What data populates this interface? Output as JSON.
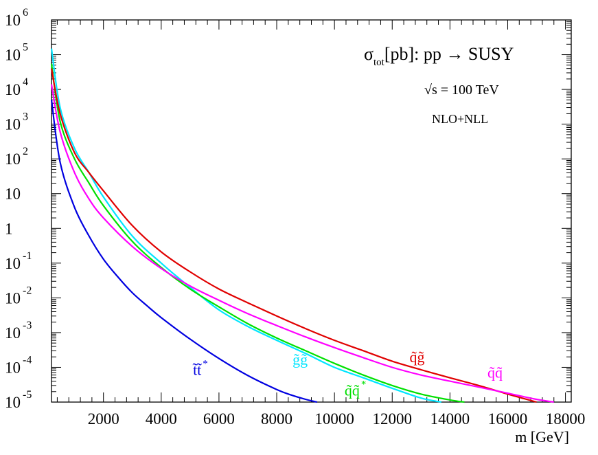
{
  "chart_data": {
    "type": "line",
    "title": {
      "sigma": "σ",
      "subscript": "tot",
      "rest": "[pb]: pp → SUSY"
    },
    "annotations": [
      {
        "id": "energy",
        "text": "√s = 100 TeV"
      },
      {
        "id": "order",
        "text": "NLO+NLL"
      }
    ],
    "xlabel": "m [GeV]",
    "ylabel": "",
    "xlim": [
      200,
      18200
    ],
    "ylim_log10": [
      -5,
      6
    ],
    "yscale": "log",
    "grid": false,
    "x_ticks": [
      2000,
      4000,
      6000,
      8000,
      10000,
      12000,
      14000,
      16000,
      18000
    ],
    "x_tick_labels": [
      "2000",
      "4000",
      "6000",
      "8000",
      "10000",
      "12000",
      "14000",
      "16000",
      "18000"
    ],
    "y_ticks": [
      {
        "value": 1000000.0,
        "base": "10",
        "exp": "6"
      },
      {
        "value": 100000.0,
        "base": "10",
        "exp": "5"
      },
      {
        "value": 10000.0,
        "base": "10",
        "exp": "4"
      },
      {
        "value": 1000.0,
        "base": "10",
        "exp": "3"
      },
      {
        "value": 100.0,
        "base": "10",
        "exp": "2"
      },
      {
        "value": 10,
        "base": "10",
        "exp": ""
      },
      {
        "value": 1,
        "base": "1",
        "exp": ""
      },
      {
        "value": 0.1,
        "base": "10",
        "exp": "-1"
      },
      {
        "value": 0.01,
        "base": "10",
        "exp": "-2"
      },
      {
        "value": 0.001,
        "base": "10",
        "exp": "-3"
      },
      {
        "value": 0.0001,
        "base": "10",
        "exp": "-4"
      },
      {
        "value": 1e-05,
        "base": "10",
        "exp": "-5"
      }
    ],
    "series": [
      {
        "name": "g̃g̃",
        "label": {
          "main": "g̃g̃",
          "sup": "",
          "x": 8550,
          "y": 0.00012
        },
        "color": "#00e5ff",
        "x": [
          200,
          500,
          1000,
          1500,
          2000,
          3000,
          4000,
          5000,
          6000,
          7000,
          8000,
          9000,
          10000,
          11000,
          12000,
          13000,
          13700
        ],
        "y": [
          150000,
          3000,
          200,
          40,
          8,
          0.6,
          0.1,
          0.02,
          0.0045,
          0.0015,
          0.0006,
          0.00025,
          0.0001,
          5e-05,
          2.5e-05,
          1.3e-05,
          1e-05
        ]
      },
      {
        "name": "q̃q̃*",
        "label": {
          "main": "q̃q̃",
          "sup": "*",
          "x": 10350,
          "y": 1.55e-05
        },
        "color": "#00e000",
        "x": [
          200,
          500,
          1000,
          1500,
          2000,
          3000,
          4000,
          5000,
          6000,
          7000,
          8000,
          9000,
          10000,
          11000,
          12000,
          13000,
          14000,
          14500
        ],
        "y": [
          55000,
          1200,
          100,
          20,
          4.5,
          0.42,
          0.075,
          0.018,
          0.0055,
          0.0018,
          0.0007,
          0.0003,
          0.00013,
          6e-05,
          3e-05,
          1.7e-05,
          1.15e-05,
          1e-05
        ]
      },
      {
        "name": "q̃g̃",
        "label": {
          "main": "q̃g̃",
          "sup": "",
          "x": 12600,
          "y": 0.00014
        },
        "color": "#e00000",
        "x": [
          200,
          500,
          1000,
          1500,
          2000,
          3000,
          4000,
          5000,
          6000,
          7000,
          8000,
          9000,
          10000,
          11000,
          12000,
          13000,
          14000,
          15000,
          16000,
          17000
        ],
        "y": [
          40000,
          2000,
          150,
          40,
          12,
          1.2,
          0.21,
          0.056,
          0.018,
          0.0072,
          0.003,
          0.0013,
          0.0006,
          0.0003,
          0.00015,
          8.5e-05,
          5e-05,
          3e-05,
          1.7e-05,
          1e-05
        ]
      },
      {
        "name": "q̃q̃",
        "label": {
          "main": "q̃q̃",
          "sup": "",
          "x": 15300,
          "y": 5e-05
        },
        "color": "#ff00ff",
        "x": [
          200,
          500,
          1000,
          1500,
          2000,
          3000,
          4000,
          5000,
          6000,
          7000,
          8000,
          9000,
          10000,
          11000,
          12000,
          13000,
          14000,
          15000,
          16000,
          17000,
          17600
        ],
        "y": [
          14000,
          600,
          40,
          7,
          2,
          0.3,
          0.07,
          0.022,
          0.0085,
          0.0035,
          0.0016,
          0.00075,
          0.00037,
          0.00019,
          0.0001,
          6e-05,
          4e-05,
          2.7e-05,
          1.8e-05,
          1.2e-05,
          1e-05
        ]
      },
      {
        "name": "t̃t̃*",
        "label": {
          "main": "t̃t̃",
          "sup": "*",
          "x": 5100,
          "y": 6e-05
        },
        "color": "#0000e0",
        "x": [
          200,
          500,
          1000,
          1500,
          2000,
          2500,
          3000,
          3500,
          4000,
          5000,
          6000,
          7000,
          8000,
          8500,
          9000,
          9400
        ],
        "y": [
          5000,
          80,
          4,
          0.6,
          0.13,
          0.04,
          0.014,
          0.006,
          0.0027,
          0.00065,
          0.00018,
          5.8e-05,
          2.3e-05,
          1.6e-05,
          1.2e-05,
          1e-05
        ]
      }
    ]
  }
}
